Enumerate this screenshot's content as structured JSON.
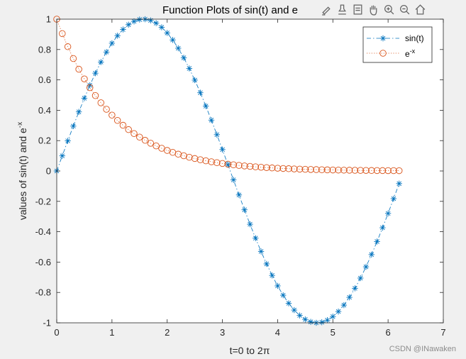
{
  "chart_data": {
    "type": "line",
    "title": "Function Plots of sin(t) and e",
    "xlabel": "t=0 to 2π",
    "ylabel": "values of sin(t) and e",
    "ylabel_sup": "-x",
    "xlim": [
      0,
      7
    ],
    "ylim": [
      -1,
      1
    ],
    "xticks": [
      "0",
      "1",
      "2",
      "3",
      "4",
      "5",
      "6",
      "7"
    ],
    "yticks": [
      "-1",
      "-0.8",
      "-0.6",
      "-0.4",
      "-0.2",
      "0",
      "0.2",
      "0.4",
      "0.6",
      "0.8",
      "1"
    ],
    "legend_position": "top-right",
    "grid": false,
    "x": [
      0,
      0.1,
      0.2,
      0.3,
      0.4,
      0.5,
      0.6,
      0.7,
      0.8,
      0.9,
      1.0,
      1.1,
      1.2,
      1.3,
      1.4,
      1.5,
      1.6,
      1.7,
      1.8,
      1.9,
      2.0,
      2.1,
      2.2,
      2.3,
      2.4,
      2.5,
      2.6,
      2.7,
      2.8,
      2.9,
      3.0,
      3.1,
      3.2,
      3.3,
      3.4,
      3.5,
      3.6,
      3.7,
      3.8,
      3.9,
      4.0,
      4.1,
      4.2,
      4.3,
      4.4,
      4.5,
      4.6,
      4.7,
      4.8,
      4.9,
      5.0,
      5.1,
      5.2,
      5.3,
      5.4,
      5.5,
      5.6,
      5.7,
      5.8,
      5.9,
      6.0,
      6.1,
      6.2
    ],
    "series": [
      {
        "name": "sin(t)",
        "color": "#0072BD",
        "marker": "asterisk",
        "line": "dash-dot",
        "values": [
          0.0,
          0.0998,
          0.1987,
          0.2955,
          0.3894,
          0.4794,
          0.5646,
          0.6442,
          0.7174,
          0.7833,
          0.8415,
          0.8912,
          0.932,
          0.9636,
          0.9854,
          0.9975,
          0.9996,
          0.9917,
          0.9738,
          0.9463,
          0.9093,
          0.8632,
          0.8085,
          0.7457,
          0.6755,
          0.5985,
          0.5155,
          0.4274,
          0.335,
          0.2392,
          0.1411,
          0.0416,
          -0.0584,
          -0.1577,
          -0.2555,
          -0.3508,
          -0.4425,
          -0.5298,
          -0.6119,
          -0.6878,
          -0.7568,
          -0.8183,
          -0.8716,
          -0.9162,
          -0.9516,
          -0.9775,
          -0.9937,
          -0.9999,
          -0.9962,
          -0.9825,
          -0.9589,
          -0.9258,
          -0.8835,
          -0.8323,
          -0.7728,
          -0.7055,
          -0.6313,
          -0.5507,
          -0.4646,
          -0.3739,
          -0.2794,
          -0.1822,
          -0.0831
        ]
      },
      {
        "name": "e",
        "name_sup": "-x",
        "color": "#D95319",
        "marker": "circle",
        "line": "dotted",
        "values": [
          1.0,
          0.9048,
          0.8187,
          0.7408,
          0.6703,
          0.6065,
          0.5488,
          0.4966,
          0.4493,
          0.4066,
          0.3679,
          0.3329,
          0.3012,
          0.2725,
          0.2466,
          0.2231,
          0.2019,
          0.1827,
          0.1653,
          0.1496,
          0.1353,
          0.1225,
          0.1108,
          0.1003,
          0.0907,
          0.0821,
          0.0743,
          0.0672,
          0.0608,
          0.055,
          0.0498,
          0.045,
          0.0408,
          0.0369,
          0.0334,
          0.0302,
          0.0273,
          0.0247,
          0.0224,
          0.0202,
          0.0183,
          0.0166,
          0.015,
          0.0136,
          0.0123,
          0.0111,
          0.0101,
          0.0091,
          0.0082,
          0.0074,
          0.0067,
          0.0061,
          0.0055,
          0.005,
          0.0045,
          0.0041,
          0.0037,
          0.0033,
          0.003,
          0.0027,
          0.0025,
          0.0022,
          0.002
        ]
      }
    ]
  },
  "toolbar": {
    "icons": [
      "brush-icon",
      "pin-icon",
      "data-tip-icon",
      "pan-icon",
      "zoom-in-icon",
      "zoom-out-icon",
      "home-icon"
    ]
  },
  "watermark": "CSDN @INawaken"
}
